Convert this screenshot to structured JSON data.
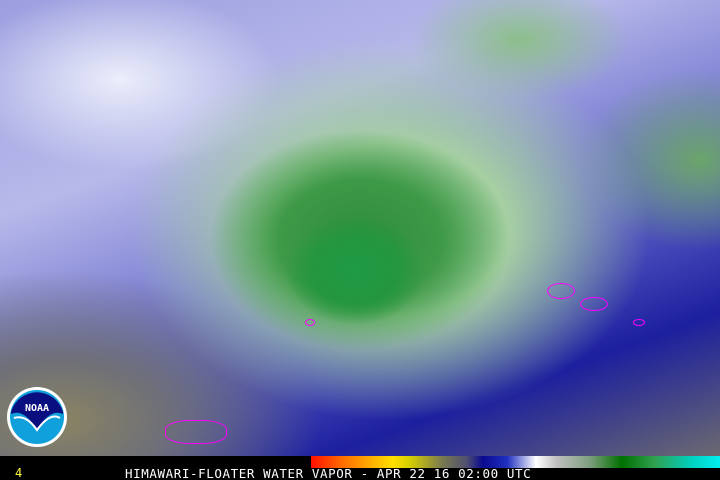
{
  "image": {
    "description_kind": "satellite water vapor imagery"
  },
  "logo": {
    "text": "NOAA"
  },
  "footer": {
    "frame_number": "4",
    "caption": "HIMAWARI-FLOATER WATER VAPOR - APR 22 16 02:00 UTC"
  },
  "colors": {
    "outline": "#ff00ff",
    "storm": "#2e8c3a",
    "background": "#000000",
    "frame_text": "#ffff40"
  }
}
